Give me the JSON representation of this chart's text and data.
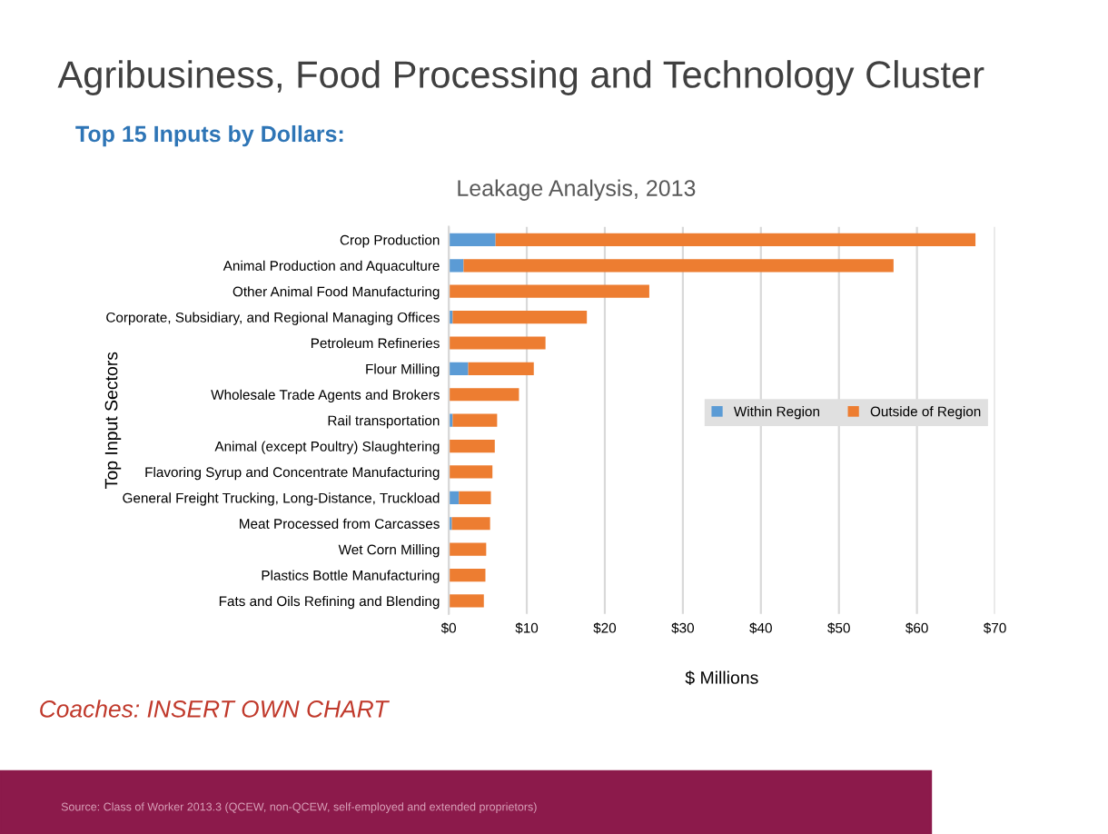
{
  "chart_data": {
    "type": "bar",
    "orientation": "horizontal",
    "stacked": true,
    "title": "Agribusiness, Food Processing and Technology Cluster",
    "subtitle": "Top 15 Inputs by Dollars:",
    "xlabel": "$ Millions",
    "ylabel": "Top Input Sectors",
    "annotations": [
      "Leakage Analysis, 2013",
      "Coaches: INSERT OWN CHART",
      "Source: Class of Worker 2013.3 (QCEW, non-QCEW, self-employed and extended proprietors)"
    ],
    "categories": [
      "Crop Production",
      "Animal Production and Aquaculture",
      "Other Animal Food Manufacturing",
      "Corporate, Subsidiary, and Regional Managing Offices",
      "Petroleum Refineries",
      "Flour Milling",
      "Wholesale Trade Agents and Brokers",
      "Rail transportation",
      "Animal (except Poultry) Slaughtering",
      "Flavoring Syrup and Concentrate Manufacturing",
      "General Freight Trucking, Long-Distance, Truckload",
      "Meat Processed from Carcasses",
      "Wet Corn Milling",
      "Plastics Bottle Manufacturing",
      "Fats and Oils Refining and Blending"
    ],
    "series": [
      {
        "name": "Within Region",
        "color": "#5b9bd5",
        "values": [
          6.0,
          1.9,
          0,
          0.5,
          0,
          2.5,
          0,
          0.5,
          0,
          0,
          1.3,
          0.4,
          0,
          0,
          0
        ]
      },
      {
        "name": "Outside of Region",
        "color": "#ed7d31",
        "values": [
          61.5,
          55.1,
          25.7,
          17.2,
          12.4,
          8.4,
          9.0,
          5.7,
          5.9,
          5.6,
          4.1,
          4.9,
          4.8,
          4.7,
          4.5
        ]
      }
    ],
    "xlim": [
      0,
      70
    ],
    "xticks": [
      {
        "value": 0,
        "label": "$0"
      },
      {
        "value": 10,
        "label": "$10"
      },
      {
        "value": 20,
        "label": "$20"
      },
      {
        "value": 30,
        "label": "$30"
      },
      {
        "value": 40,
        "label": "$40"
      },
      {
        "value": 50,
        "label": "$50"
      },
      {
        "value": 60,
        "label": "$60"
      },
      {
        "value": 70,
        "label": "$70"
      }
    ],
    "grid": "x",
    "legend": "right"
  }
}
